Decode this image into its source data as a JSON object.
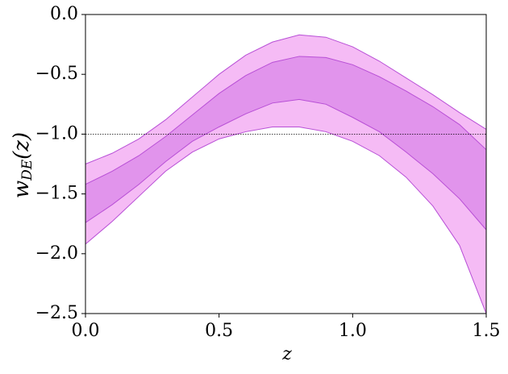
{
  "chart_data": {
    "type": "band",
    "xlabel": "z",
    "ylabel": {
      "base": "w",
      "sub": "DE",
      "rest": "(z)"
    },
    "x": [
      0,
      0.1,
      0.2,
      0.3,
      0.4,
      0.5,
      0.6,
      0.7,
      0.8,
      0.9,
      1.0,
      1.1,
      1.2,
      1.3,
      1.4,
      1.5
    ],
    "series": [
      {
        "color": "#f5bbf5",
        "edge": "#b84fd6",
        "upper": [
          -1.25,
          -1.16,
          -1.04,
          -0.88,
          -0.69,
          -0.5,
          -0.34,
          -0.23,
          -0.17,
          -0.19,
          -0.27,
          -0.39,
          -0.53,
          -0.67,
          -0.82,
          -0.96
        ],
        "lower": [
          -1.92,
          -1.73,
          -1.52,
          -1.31,
          -1.15,
          -1.04,
          -0.98,
          -0.94,
          -0.94,
          -0.98,
          -1.06,
          -1.18,
          -1.36,
          -1.6,
          -1.93,
          -2.5
        ]
      },
      {
        "color": "#e194ec",
        "edge": "#b84fd6",
        "upper": [
          -1.42,
          -1.31,
          -1.18,
          -1.02,
          -0.84,
          -0.66,
          -0.51,
          -0.4,
          -0.35,
          -0.36,
          -0.42,
          -0.52,
          -0.64,
          -0.77,
          -0.92,
          -1.13
        ],
        "lower": [
          -1.74,
          -1.59,
          -1.42,
          -1.23,
          -1.06,
          -0.94,
          -0.83,
          -0.74,
          -0.71,
          -0.75,
          -0.86,
          -0.98,
          -1.15,
          -1.33,
          -1.54,
          -1.8
        ]
      }
    ],
    "hlines": [
      {
        "y": -1,
        "color": "#000000",
        "dash": "dotted"
      }
    ],
    "xlim": [
      0,
      1.5
    ],
    "xticks": [
      {
        "value": 0,
        "label": "0.0"
      },
      0.5,
      {
        "value": 1,
        "label": "1.0"
      },
      1.5
    ],
    "ylim": [
      -2.5,
      0
    ],
    "yticks": [
      {
        "value": 0,
        "label": "0.0"
      },
      {
        "value": -0.5,
        "label": "−0.5"
      },
      {
        "value": -1,
        "label": "−1.0"
      },
      {
        "value": -1.5,
        "label": "−1.5"
      },
      {
        "value": -2,
        "label": "−2.0"
      },
      {
        "value": -2.5,
        "label": "−2.5"
      }
    ]
  }
}
